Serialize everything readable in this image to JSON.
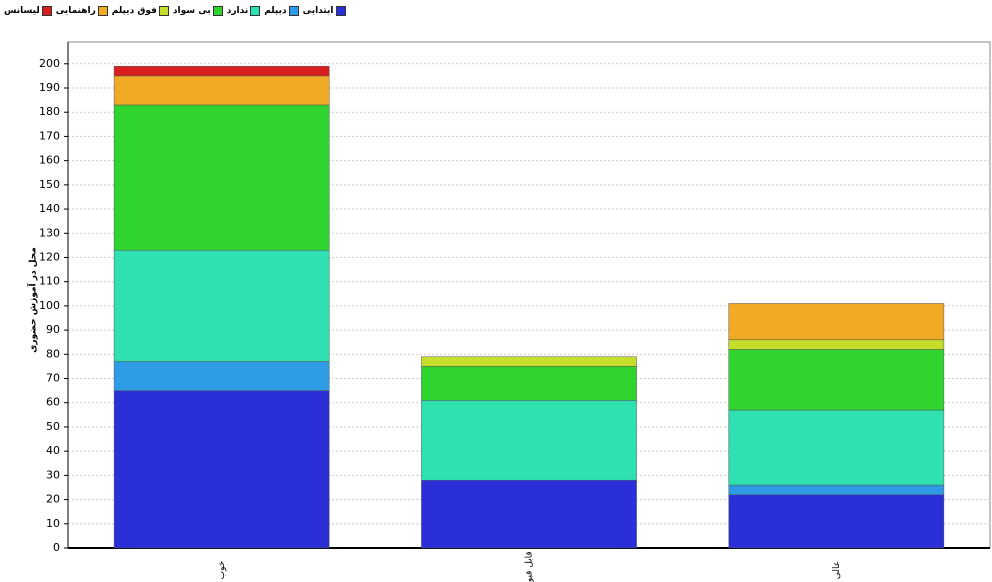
{
  "chart_data": {
    "type": "stacked-bar",
    "y_label": "محل در آموزش حضوری",
    "categories": [
      "خوب",
      "قابل قبول",
      "عالی"
    ],
    "series": [
      {
        "name": "ابتدایی",
        "color": "#2b2fd8",
        "values": [
          65,
          28,
          22
        ]
      },
      {
        "name": "دیپلم",
        "color": "#2e9be6",
        "values": [
          12,
          0,
          4
        ]
      },
      {
        "name": "ندارد",
        "color": "#2fe0b0",
        "values": [
          46,
          33,
          31
        ]
      },
      {
        "name": "بی سواد",
        "color": "#2fd42f",
        "values": [
          60,
          14,
          25
        ]
      },
      {
        "name": "فوق دیپلم",
        "color": "#c6dd2c",
        "values": [
          0,
          4,
          4
        ]
      },
      {
        "name": "راهنمایی",
        "color": "#f0aa25",
        "values": [
          12,
          0,
          15
        ]
      },
      {
        "name": "لیسانس",
        "color": "#d81e1e",
        "values": [
          4,
          0,
          0
        ]
      }
    ],
    "ylim": [
      0,
      209
    ],
    "yticks": [
      0,
      10,
      20,
      30,
      40,
      50,
      60,
      70,
      80,
      90,
      100,
      110,
      120,
      130,
      140,
      150,
      160,
      170,
      180,
      190,
      200
    ],
    "grid": true
  }
}
